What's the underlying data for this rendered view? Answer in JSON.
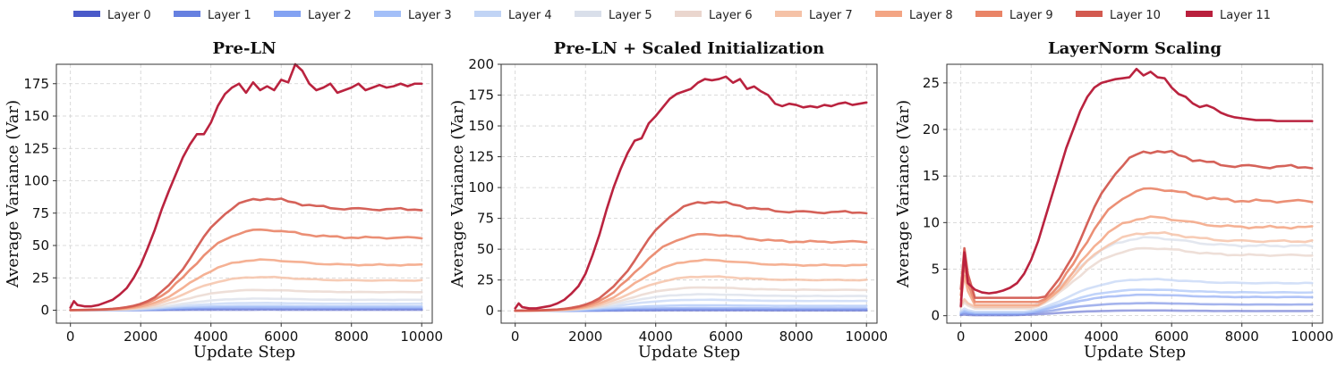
{
  "legend": {
    "entries": [
      {
        "label": "Layer 0",
        "color": "#4a5ac9"
      },
      {
        "label": "Layer 1",
        "color": "#6680e0"
      },
      {
        "label": "Layer 2",
        "color": "#83a2f2"
      },
      {
        "label": "Layer 3",
        "color": "#a3bff8"
      },
      {
        "label": "Layer 4",
        "color": "#c1d4f5"
      },
      {
        "label": "Layer 5",
        "color": "#d9dfea"
      },
      {
        "label": "Layer 6",
        "color": "#ead6ce"
      },
      {
        "label": "Layer 7",
        "color": "#f5c2a7"
      },
      {
        "label": "Layer 8",
        "color": "#f3a584"
      },
      {
        "label": "Layer 9",
        "color": "#e98467"
      },
      {
        "label": "Layer 10",
        "color": "#d35a50"
      },
      {
        "label": "Layer 11",
        "color": "#b9203d"
      }
    ],
    "placement": "top-center"
  },
  "chart_data": [
    {
      "type": "line",
      "title": "Pre-LN",
      "xlabel": "Update Step",
      "ylabel": "Average Variance (Var)",
      "xlim": [
        -400,
        10300
      ],
      "ylim": [
        -10,
        190
      ],
      "xticks": [
        0,
        2000,
        4000,
        6000,
        8000,
        10000
      ],
      "xtick_labels": [
        "0",
        "2000",
        "4000",
        "6000",
        "8000",
        "10000"
      ],
      "yticks": [
        0,
        25,
        50,
        75,
        100,
        125,
        150,
        175
      ],
      "ytick_labels": [
        "0",
        "25",
        "50",
        "75",
        "100",
        "125",
        "150",
        "175"
      ],
      "grid": true,
      "series": [
        {
          "name": "Layer 0",
          "final": 0.3
        },
        {
          "name": "Layer 1",
          "final": 1
        },
        {
          "name": "Layer 2",
          "final": 2
        },
        {
          "name": "Layer 3",
          "final": 3
        },
        {
          "name": "Layer 4",
          "final": 5
        },
        {
          "name": "Layer 5",
          "final": 8
        },
        {
          "name": "Layer 6",
          "final": 14
        },
        {
          "name": "Layer 7",
          "final": 23
        },
        {
          "name": "Layer 8",
          "final": 35
        },
        {
          "name": "Layer 9",
          "final": 56
        },
        {
          "name": "Layer 10",
          "final": 78
        },
        {
          "name": "Layer 11",
          "x": [
            0,
            100,
            200,
            400,
            600,
            800,
            1000,
            1200,
            1400,
            1600,
            1800,
            2000,
            2200,
            2400,
            2600,
            2800,
            3000,
            3200,
            3400,
            3600,
            3800,
            4000,
            4200,
            4400,
            4600,
            4800,
            5000,
            5200,
            5400,
            5600,
            5800,
            6000,
            6200,
            6400,
            6600,
            6800,
            7000,
            7200,
            7400,
            7600,
            7800,
            8000,
            8200,
            8400,
            8600,
            8800,
            9000,
            9200,
            9400,
            9600,
            9800,
            10000
          ],
          "values": [
            2,
            7,
            4,
            3,
            3,
            4,
            6,
            8,
            12,
            17,
            25,
            35,
            48,
            62,
            78,
            92,
            105,
            118,
            128,
            136,
            136,
            145,
            158,
            167,
            172,
            175,
            168,
            176,
            170,
            173,
            170,
            178,
            176,
            190,
            185,
            175,
            170,
            172,
            175,
            168,
            170,
            172,
            175,
            170,
            172,
            174,
            172,
            173,
            175,
            173,
            175,
            175
          ]
        }
      ]
    },
    {
      "type": "line",
      "title": "Pre-LN + Scaled Initialization",
      "xlabel": "Update Step",
      "ylabel": "Average Variance (Var)",
      "xlim": [
        -400,
        10300
      ],
      "ylim": [
        -10,
        200
      ],
      "xticks": [
        0,
        2000,
        4000,
        6000,
        8000,
        10000
      ],
      "xtick_labels": [
        "0",
        "2000",
        "4000",
        "6000",
        "8000",
        "10000"
      ],
      "yticks": [
        0,
        25,
        50,
        75,
        100,
        125,
        150,
        175,
        200
      ],
      "ytick_labels": [
        "0",
        "25",
        "50",
        "75",
        "100",
        "125",
        "150",
        "175",
        "200"
      ],
      "grid": true,
      "series": [
        {
          "name": "Layer 0",
          "final": 0.3
        },
        {
          "name": "Layer 1",
          "final": 1
        },
        {
          "name": "Layer 2",
          "final": 2
        },
        {
          "name": "Layer 3",
          "final": 4
        },
        {
          "name": "Layer 4",
          "final": 8
        },
        {
          "name": "Layer 5",
          "final": 12
        },
        {
          "name": "Layer 6",
          "final": 17
        },
        {
          "name": "Layer 7",
          "final": 25
        },
        {
          "name": "Layer 8",
          "final": 37
        },
        {
          "name": "Layer 9",
          "final": 56
        },
        {
          "name": "Layer 10",
          "final": 80
        },
        {
          "name": "Layer 11",
          "x": [
            0,
            100,
            200,
            400,
            600,
            800,
            1000,
            1200,
            1400,
            1600,
            1800,
            2000,
            2200,
            2400,
            2600,
            2800,
            3000,
            3200,
            3400,
            3600,
            3800,
            4000,
            4200,
            4400,
            4600,
            4800,
            5000,
            5200,
            5400,
            5600,
            5800,
            6000,
            6200,
            6400,
            6600,
            6800,
            7000,
            7200,
            7400,
            7600,
            7800,
            8000,
            8200,
            8400,
            8600,
            8800,
            9000,
            9200,
            9400,
            9600,
            9800,
            10000
          ],
          "values": [
            2,
            6,
            3,
            2,
            2,
            3,
            4,
            6,
            9,
            14,
            20,
            30,
            45,
            62,
            82,
            100,
            115,
            128,
            138,
            140,
            152,
            158,
            165,
            172,
            176,
            178,
            180,
            185,
            188,
            187,
            188,
            190,
            185,
            188,
            180,
            182,
            178,
            175,
            168,
            166,
            168,
            167,
            165,
            166,
            165,
            167,
            166,
            168,
            169,
            167,
            168,
            169
          ]
        }
      ]
    },
    {
      "type": "line",
      "title": "LayerNorm Scaling",
      "xlabel": "Update Step",
      "ylabel": "Average Variance (Var)",
      "xlim": [
        -400,
        10300
      ],
      "ylim": [
        -0.8,
        27
      ],
      "xticks": [
        0,
        2000,
        4000,
        6000,
        8000,
        10000
      ],
      "xtick_labels": [
        "0",
        "2000",
        "4000",
        "6000",
        "8000",
        "10000"
      ],
      "yticks": [
        0,
        5,
        10,
        15,
        20,
        25
      ],
      "ytick_labels": [
        "0",
        "5",
        "10",
        "15",
        "20",
        "25"
      ],
      "grid": true,
      "series": [
        {
          "name": "Layer 0",
          "final": 0.5
        },
        {
          "name": "Layer 1",
          "final": 1.2
        },
        {
          "name": "Layer 2",
          "final": 2
        },
        {
          "name": "Layer 3",
          "final": 2.5
        },
        {
          "name": "Layer 4",
          "final": 3.5
        },
        {
          "name": "Layer 5",
          "final": 7.5
        },
        {
          "name": "Layer 6",
          "final": 6.5
        },
        {
          "name": "Layer 7",
          "final": 8
        },
        {
          "name": "Layer 8",
          "final": 9.5
        },
        {
          "name": "Layer 9",
          "final": 12.3
        },
        {
          "name": "Layer 10",
          "final": 16
        },
        {
          "name": "Layer 11",
          "x": [
            0,
            100,
            200,
            400,
            600,
            800,
            1000,
            1200,
            1400,
            1600,
            1800,
            2000,
            2200,
            2400,
            2600,
            2800,
            3000,
            3200,
            3400,
            3600,
            3800,
            4000,
            4200,
            4400,
            4600,
            4800,
            5000,
            5200,
            5400,
            5600,
            5800,
            6000,
            6200,
            6400,
            6600,
            6800,
            7000,
            7200,
            7400,
            7600,
            7800,
            8000,
            8200,
            8400,
            8600,
            8800,
            9000,
            9200,
            9400,
            9600,
            9800,
            10000
          ],
          "values": [
            1,
            6.8,
            3.5,
            2.8,
            2.5,
            2.4,
            2.5,
            2.7,
            3,
            3.5,
            4.5,
            6,
            8,
            10.5,
            13,
            15.5,
            18,
            20,
            22,
            23.5,
            24.5,
            25,
            25.2,
            25.4,
            25.5,
            25.6,
            26.5,
            25.8,
            26.2,
            25.6,
            25.5,
            24.5,
            23.8,
            23.5,
            22.8,
            22.4,
            22.6,
            22.3,
            21.8,
            21.5,
            21.3,
            21.2,
            21.1,
            21.0,
            21.0,
            21.0,
            20.9,
            20.9,
            20.9,
            20.9,
            20.9,
            20.9
          ]
        }
      ]
    }
  ]
}
